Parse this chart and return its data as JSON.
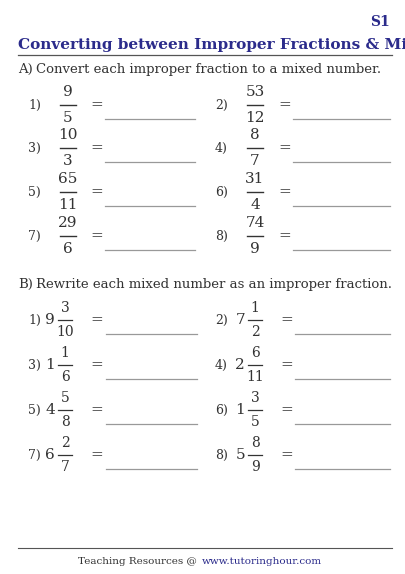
{
  "title": "Converting between Improper Fractions & Mixed Numbers",
  "sheet_label": "S1",
  "section_a_label": "A)",
  "section_a_instruction": "Convert each improper fraction to a mixed number.",
  "section_b_label": "B)",
  "section_b_instruction": "Rewrite each mixed number as an improper fraction.",
  "section_a_problems": [
    {
      "num": "9",
      "den": "5",
      "label": "1)"
    },
    {
      "num": "53",
      "den": "12",
      "label": "2)"
    },
    {
      "num": "10",
      "den": "3",
      "label": "3)"
    },
    {
      "num": "8",
      "den": "7",
      "label": "4)"
    },
    {
      "num": "65",
      "den": "11",
      "label": "5)"
    },
    {
      "num": "31",
      "den": "4",
      "label": "6)"
    },
    {
      "num": "29",
      "den": "6",
      "label": "7)"
    },
    {
      "num": "74",
      "den": "9",
      "label": "8)"
    }
  ],
  "section_b_problems": [
    {
      "whole": "9",
      "num": "3",
      "den": "10",
      "label": "1)"
    },
    {
      "whole": "7",
      "num": "1",
      "den": "2",
      "label": "2)"
    },
    {
      "whole": "1",
      "num": "1",
      "den": "6",
      "label": "3)"
    },
    {
      "whole": "2",
      "num": "6",
      "den": "11",
      "label": "4)"
    },
    {
      "whole": "4",
      "num": "5",
      "den": "8",
      "label": "5)"
    },
    {
      "whole": "1",
      "num": "3",
      "den": "5",
      "label": "6)"
    },
    {
      "whole": "6",
      "num": "2",
      "den": "7",
      "label": "7)"
    },
    {
      "whole": "5",
      "num": "8",
      "den": "9",
      "label": "8)"
    }
  ],
  "title_color": "#2B2B8B",
  "label_color": "#2B2B8B",
  "text_color": "#333333",
  "line_color": "#999999",
  "footer_link_color": "#2B2B8B",
  "bg_color": "#FFFFFF",
  "fig_width": 4.05,
  "fig_height": 5.74,
  "dpi": 100
}
